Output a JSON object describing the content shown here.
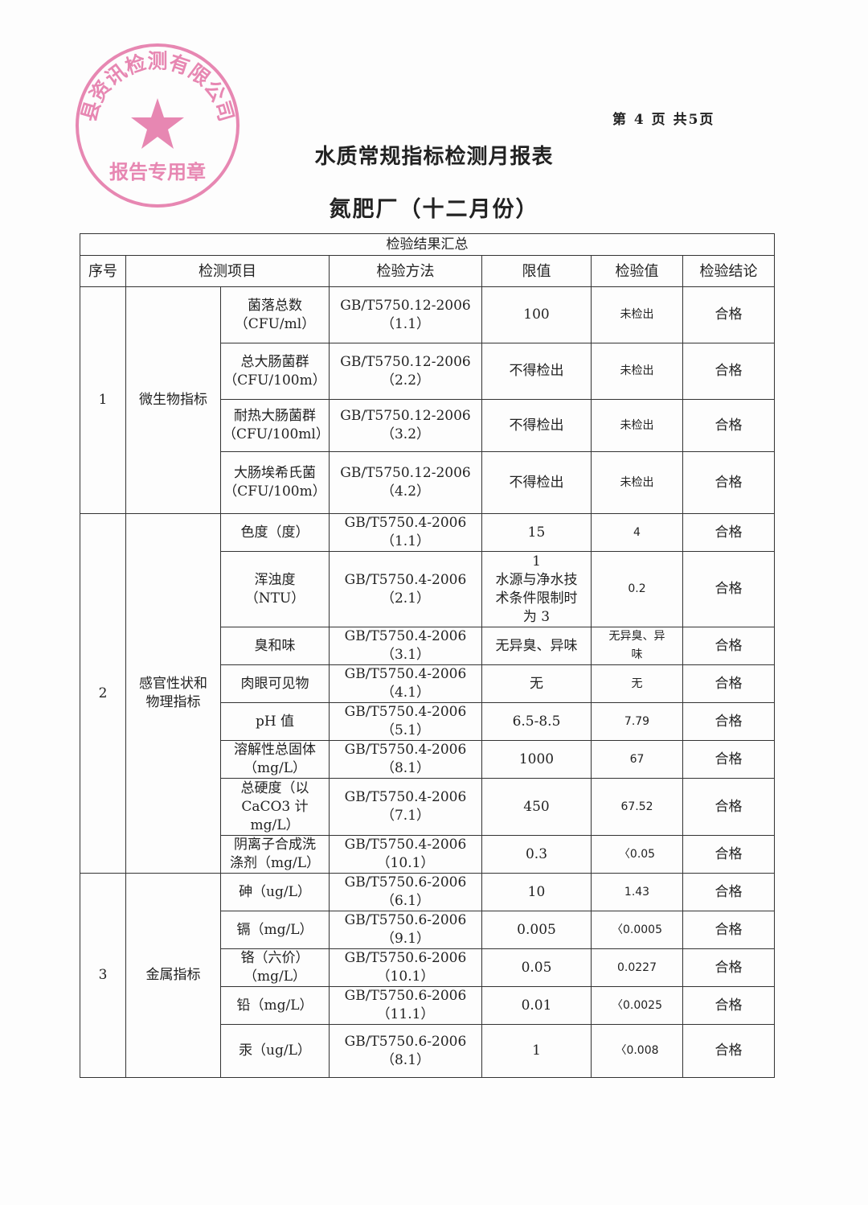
{
  "page_number": "第 4 页 共5页",
  "title": "水质常规指标检测月报表",
  "subtitle": "氮肥厂（十二月份）",
  "table": {
    "banner": "检验结果汇总",
    "headers": [
      "序号",
      "检测项目",
      "检验方法",
      "限值",
      "检验值",
      "检验结论"
    ],
    "groups": [
      {
        "no": "1",
        "category": "微生物指标",
        "rows": [
          {
            "item": "菌落总数\n（CFU/ml）",
            "method": "GB/T5750.12-2006\n（1.1）",
            "limit": "100",
            "value": "未检出",
            "result": "合格"
          },
          {
            "item": "总大肠菌群\n（CFU/100m）",
            "method": "GB/T5750.12-2006\n（2.2）",
            "limit": "不得检出",
            "value": "未检出",
            "result": "合格"
          },
          {
            "item": "耐热大肠菌群\n（CFU/100ml）",
            "method": "GB/T5750.12-2006\n（3.2）",
            "limit": "不得检出",
            "value": "未检出",
            "result": "合格"
          },
          {
            "item": "大肠埃希氏菌\n（CFU/100m）",
            "method": "GB/T5750.12-2006\n（4.2）",
            "limit": "不得检出",
            "value": "未检出",
            "result": "合格"
          }
        ]
      },
      {
        "no": "2",
        "category": "感官性状和\n物理指标",
        "rows": [
          {
            "item": "色度（度）",
            "method": "GB/T5750.4-2006\n（1.1）",
            "limit": "15",
            "value": "4",
            "result": "合格"
          },
          {
            "item": "浑浊度\n（NTU）",
            "method": "GB/T5750.4-2006\n（2.1）",
            "limit": "1\n水源与净水技\n术条件限制时\n为 3",
            "value": "0.2",
            "result": "合格"
          },
          {
            "item": "臭和味",
            "method": "GB/T5750.4-2006\n（3.1）",
            "limit": "无异臭、异味",
            "value": "无异臭、异\n味",
            "result": "合格"
          },
          {
            "item": "肉眼可见物",
            "method": "GB/T5750.4-2006\n（4.1）",
            "limit": "无",
            "value": "无",
            "result": "合格"
          },
          {
            "item": "pH 值",
            "method": "GB/T5750.4-2006\n（5.1）",
            "limit": "6.5-8.5",
            "value": "7.79",
            "result": "合格"
          },
          {
            "item": "溶解性总固体\n（mg/L）",
            "method": "GB/T5750.4-2006\n（8.1）",
            "limit": "1000",
            "value": "67",
            "result": "合格"
          },
          {
            "item": "总硬度（以\nCaCO3 计\nmg/L）",
            "method": "GB/T5750.4-2006\n（7.1）",
            "limit": "450",
            "value": "67.52",
            "result": "合格"
          },
          {
            "item": "阴离子合成洗\n涤剂（mg/L）",
            "method": "GB/T5750.4-2006\n（10.1）",
            "limit": "0.3",
            "value": "〈0.05",
            "result": "合格"
          }
        ]
      },
      {
        "no": "3",
        "category": "金属指标",
        "rows": [
          {
            "item": "砷（ug/L）",
            "method": "GB/T5750.6-2006\n（6.1）",
            "limit": "10",
            "value": "1.43",
            "result": "合格"
          },
          {
            "item": "镉（mg/L）",
            "method": "GB/T5750.6-2006\n（9.1）",
            "limit": "0.005",
            "value": "〈0.0005",
            "result": "合格"
          },
          {
            "item": "铬（六价）\n（mg/L）",
            "method": "GB/T5750.6-2006\n（10.1）",
            "limit": "0.05",
            "value": "0.0227",
            "result": "合格"
          },
          {
            "item": "铅（mg/L）",
            "method": "GB/T5750.6-2006\n（11.1）",
            "limit": "0.01",
            "value": "〈0.0025",
            "result": "合格"
          },
          {
            "item": "汞（ug/L）",
            "method": "GB/T5750.6-2006\n（8.1）",
            "limit": "1",
            "value": "〈0.008",
            "result": "合格"
          }
        ]
      }
    ]
  },
  "stamp": {
    "company": "县资讯检测有限公司",
    "label": "报告专用章",
    "color": "#e0609a"
  }
}
